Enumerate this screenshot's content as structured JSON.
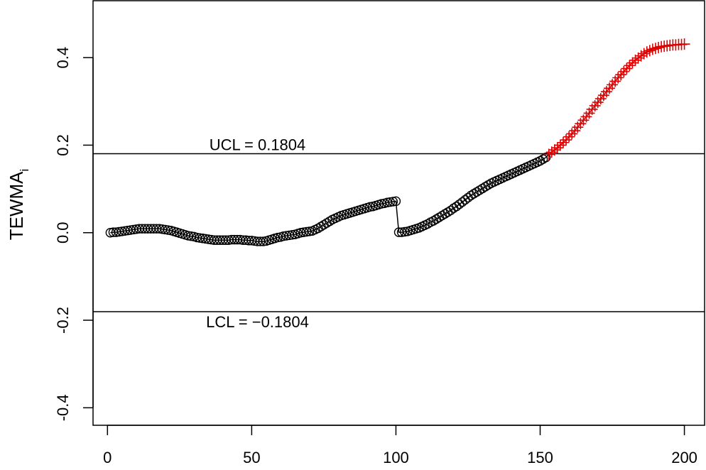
{
  "chart_data": {
    "type": "line",
    "ylabel": "TEWMA",
    "ylabel_subscript": "i",
    "xlim": [
      -5,
      207
    ],
    "ylim": [
      -0.44,
      0.53
    ],
    "x_ticks": [
      "0",
      "50",
      "100",
      "150",
      "200"
    ],
    "y_ticks": [
      "-0.4",
      "-0.2",
      "0.0",
      "0.2",
      "0.4"
    ],
    "ucl": {
      "value": 0.1804,
      "label": "UCL = 0.1804"
    },
    "lcl": {
      "value": -0.1804,
      "label": "LCL = −0.1804"
    },
    "series": [
      {
        "marker": "circle",
        "color": "#000000",
        "x": [
          1,
          2,
          3,
          4,
          5,
          6,
          7,
          8,
          9,
          10,
          11,
          12,
          13,
          14,
          15,
          16,
          17,
          18,
          19,
          20,
          21,
          22,
          23,
          24,
          25,
          26,
          27,
          28,
          29,
          30,
          31,
          32,
          33,
          34,
          35,
          36,
          37,
          38,
          39,
          40,
          41,
          42,
          43,
          44,
          45,
          46,
          47,
          48,
          49,
          50,
          51,
          52,
          53,
          54,
          55,
          56,
          57,
          58,
          59,
          60,
          61,
          62,
          63,
          64,
          65,
          66,
          67,
          68,
          69,
          70,
          71,
          72,
          73,
          74,
          75,
          76,
          77,
          78,
          79,
          80,
          81,
          82,
          83,
          84,
          85,
          86,
          87,
          88,
          89,
          90,
          91,
          92,
          93,
          94,
          95,
          96,
          97,
          98,
          99,
          100,
          101,
          102,
          103,
          104,
          105,
          106,
          107,
          108,
          109,
          110,
          111,
          112,
          113,
          114,
          115,
          116,
          117,
          118,
          119,
          120,
          121,
          122,
          123,
          124,
          125,
          126,
          127,
          128,
          129,
          130,
          131,
          132,
          133,
          134,
          135,
          136,
          137,
          138,
          139,
          140,
          141,
          142,
          143,
          144,
          145,
          146,
          147,
          148,
          149,
          150,
          151,
          152
        ],
        "y": [
          0.0,
          0.001,
          0.001,
          0.002,
          0.003,
          0.004,
          0.005,
          0.006,
          0.007,
          0.008,
          0.009,
          0.009,
          0.009,
          0.009,
          0.009,
          0.009,
          0.009,
          0.009,
          0.008,
          0.007,
          0.006,
          0.005,
          0.003,
          0.001,
          -0.001,
          -0.003,
          -0.005,
          -0.007,
          -0.008,
          -0.009,
          -0.011,
          -0.012,
          -0.013,
          -0.014,
          -0.015,
          -0.016,
          -0.017,
          -0.017,
          -0.017,
          -0.017,
          -0.017,
          -0.017,
          -0.016,
          -0.016,
          -0.016,
          -0.016,
          -0.017,
          -0.017,
          -0.018,
          -0.018,
          -0.019,
          -0.02,
          -0.02,
          -0.02,
          -0.019,
          -0.017,
          -0.015,
          -0.013,
          -0.011,
          -0.01,
          -0.008,
          -0.007,
          -0.006,
          -0.005,
          -0.004,
          -0.002,
          0.0,
          0.001,
          0.002,
          0.003,
          0.004,
          0.007,
          0.01,
          0.014,
          0.018,
          0.022,
          0.026,
          0.03,
          0.033,
          0.036,
          0.039,
          0.041,
          0.043,
          0.045,
          0.047,
          0.049,
          0.051,
          0.053,
          0.055,
          0.057,
          0.059,
          0.06,
          0.062,
          0.064,
          0.066,
          0.067,
          0.069,
          0.07,
          0.071,
          0.072,
          0.001,
          0.001,
          0.002,
          0.003,
          0.005,
          0.007,
          0.009,
          0.011,
          0.014,
          0.017,
          0.02,
          0.024,
          0.027,
          0.031,
          0.035,
          0.039,
          0.043,
          0.047,
          0.051,
          0.056,
          0.06,
          0.065,
          0.07,
          0.075,
          0.08,
          0.085,
          0.089,
          0.093,
          0.097,
          0.101,
          0.105,
          0.109,
          0.113,
          0.116,
          0.119,
          0.122,
          0.125,
          0.128,
          0.131,
          0.134,
          0.137,
          0.14,
          0.143,
          0.146,
          0.149,
          0.152,
          0.155,
          0.158,
          0.161,
          0.164,
          0.168,
          0.172
        ]
      },
      {
        "marker": "plus",
        "color": "#dd0000",
        "x": [
          153,
          154,
          155,
          156,
          157,
          158,
          159,
          160,
          161,
          162,
          163,
          164,
          165,
          166,
          167,
          168,
          169,
          170,
          171,
          172,
          173,
          174,
          175,
          176,
          177,
          178,
          179,
          180,
          181,
          182,
          183,
          184,
          185,
          186,
          187,
          188,
          189,
          190,
          191,
          192,
          193,
          194,
          195,
          196,
          197,
          198,
          199,
          200
        ],
        "y": [
          0.179,
          0.184,
          0.189,
          0.194,
          0.2,
          0.206,
          0.212,
          0.219,
          0.226,
          0.233,
          0.241,
          0.249,
          0.257,
          0.265,
          0.273,
          0.282,
          0.29,
          0.298,
          0.306,
          0.314,
          0.322,
          0.33,
          0.338,
          0.346,
          0.354,
          0.361,
          0.368,
          0.375,
          0.382,
          0.388,
          0.394,
          0.399,
          0.404,
          0.409,
          0.413,
          0.416,
          0.419,
          0.421,
          0.423,
          0.425,
          0.426,
          0.427,
          0.428,
          0.429,
          0.429,
          0.43,
          0.43,
          0.431
        ]
      }
    ],
    "line_color": "#000000"
  }
}
